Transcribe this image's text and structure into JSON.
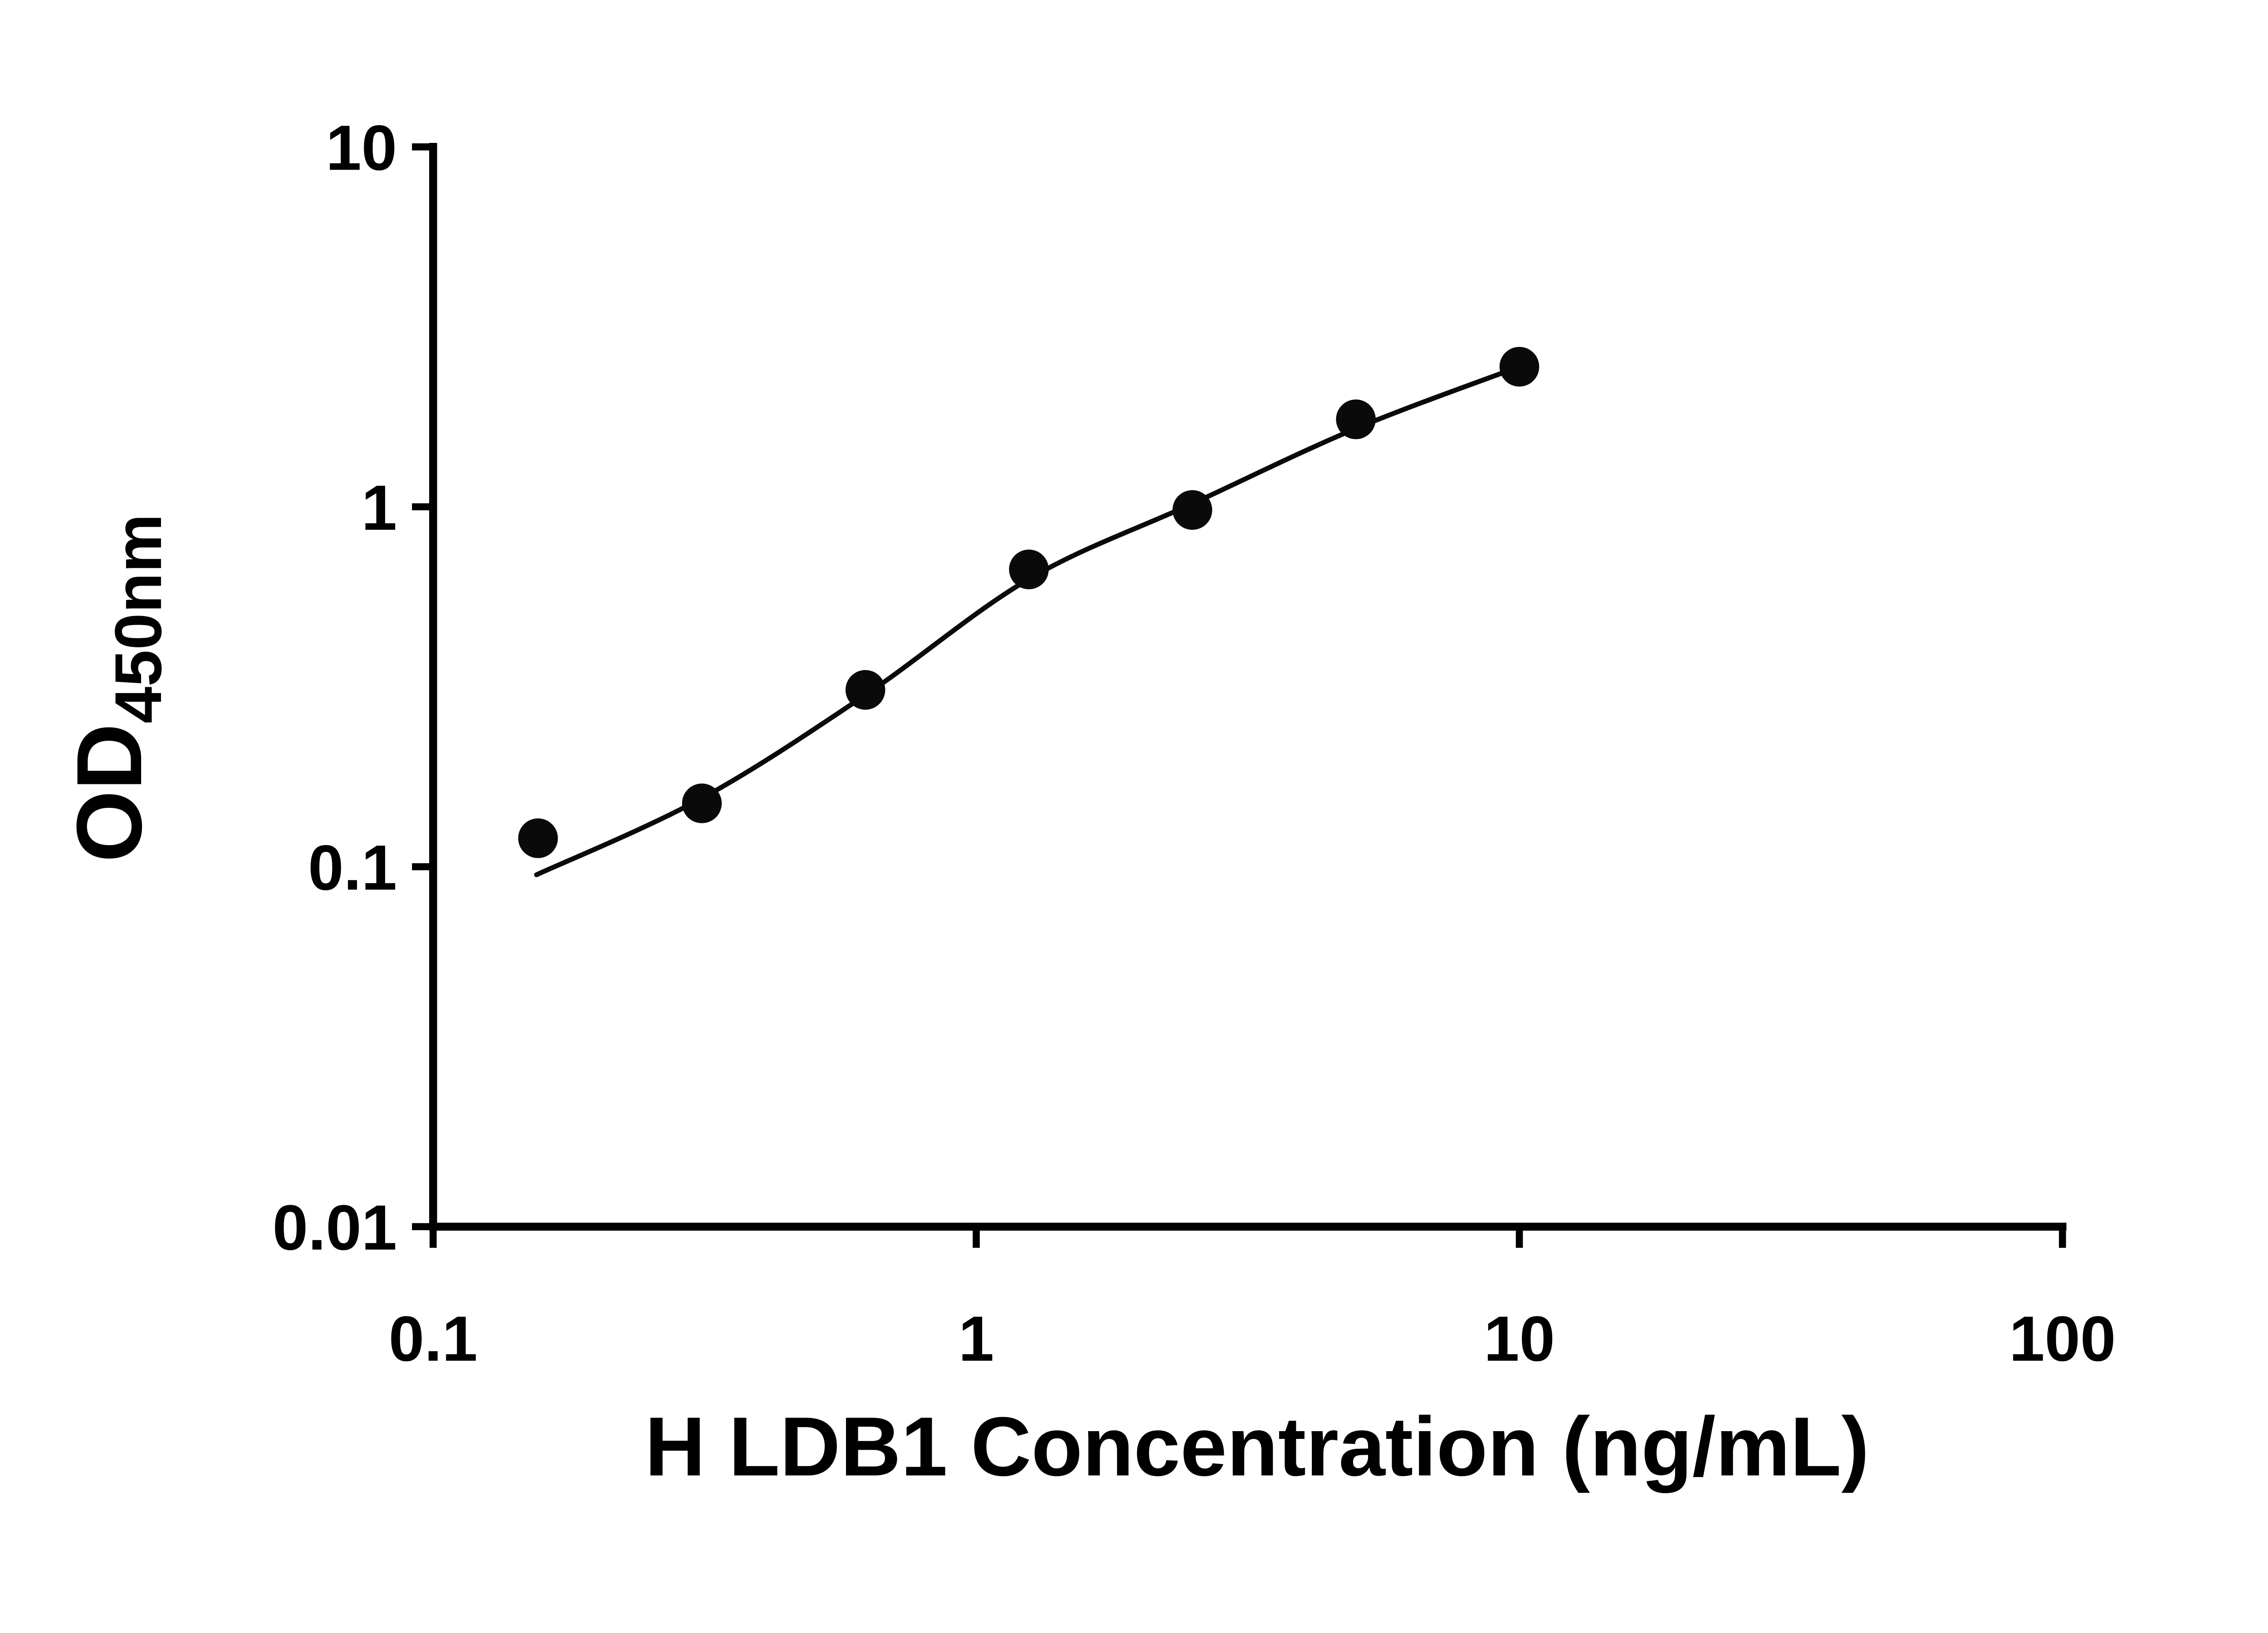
{
  "chart_data": {
    "type": "scatter",
    "title": "",
    "xlabel": "H LDB1 Concentration (ng/mL)",
    "ylabel_main": "OD",
    "ylabel_sub": "450nm",
    "x_scale": "log10",
    "y_scale": "log10",
    "xlim": [
      0.1,
      100
    ],
    "ylim": [
      0.01,
      10
    ],
    "x_ticks": [
      0.1,
      1,
      10,
      100
    ],
    "x_tick_labels": [
      "0.1",
      "1",
      "10",
      "100"
    ],
    "y_ticks": [
      0.01,
      0.1,
      1,
      10
    ],
    "y_tick_labels": [
      "0.01",
      "0.1",
      "1",
      "10"
    ],
    "grid": false,
    "legend": "none",
    "colors": {
      "axis": "#000000",
      "marker": "#0a0a0a",
      "curve": "#0a0a0a",
      "background": "#ffffff"
    },
    "series": [
      {
        "name": "standard-points",
        "type": "scatter",
        "marker": "circle-filled",
        "x": [
          0.156,
          0.3125,
          0.625,
          1.25,
          2.5,
          5,
          10
        ],
        "y": [
          0.12,
          0.15,
          0.31,
          0.67,
          0.98,
          1.75,
          2.45
        ]
      },
      {
        "name": "fit-curve",
        "type": "line",
        "x": [
          0.155,
          0.3125,
          0.625,
          1.25,
          2.5,
          5,
          10
        ],
        "y": [
          0.095,
          0.155,
          0.3,
          0.63,
          1.02,
          1.65,
          2.45
        ]
      }
    ]
  }
}
